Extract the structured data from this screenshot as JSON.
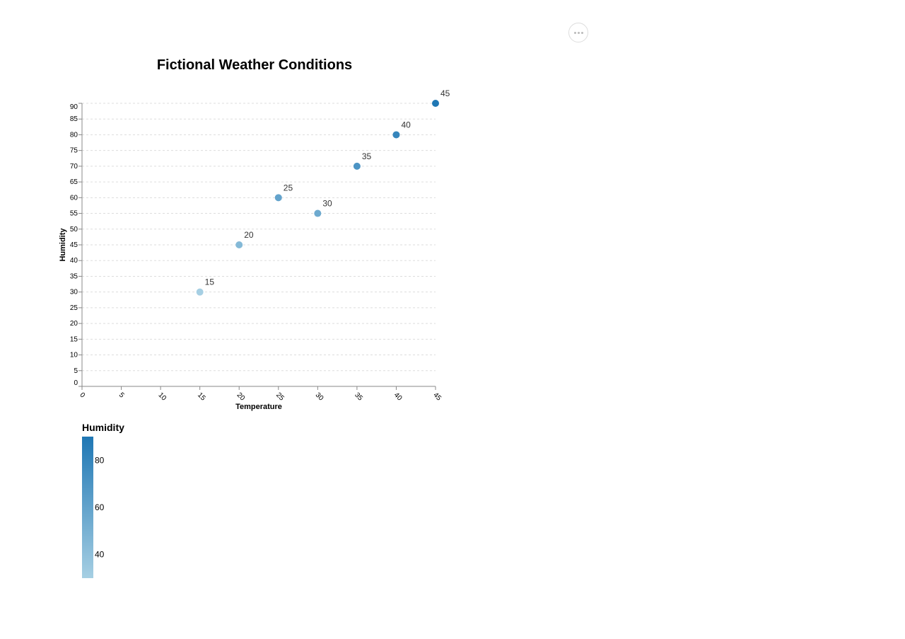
{
  "menu": {
    "icon": "more-horizontal-icon"
  },
  "chart_data": {
    "type": "scatter",
    "title": "Fictional Weather Conditions",
    "xlabel": "Temperature",
    "ylabel": "Humidity",
    "xlim": [
      0,
      45
    ],
    "ylim": [
      0,
      90
    ],
    "x_ticks": [
      "0",
      "5",
      "10",
      "15",
      "20",
      "25",
      "30",
      "35",
      "40",
      "45"
    ],
    "y_ticks": [
      "0",
      "5",
      "10",
      "15",
      "20",
      "25",
      "30",
      "35",
      "40",
      "45",
      "50",
      "55",
      "60",
      "65",
      "70",
      "75",
      "80",
      "85",
      "90"
    ],
    "grid": "horizontal dashed",
    "points": [
      {
        "x": 15,
        "y": 30,
        "label": "15"
      },
      {
        "x": 20,
        "y": 45,
        "label": "20"
      },
      {
        "x": 25,
        "y": 60,
        "label": "25"
      },
      {
        "x": 30,
        "y": 55,
        "label": "30"
      },
      {
        "x": 35,
        "y": 70,
        "label": "35"
      },
      {
        "x": 40,
        "y": 80,
        "label": "40"
      },
      {
        "x": 45,
        "y": 90,
        "label": "45"
      }
    ],
    "color_scale": {
      "field": "Humidity",
      "domain": [
        30,
        90
      ],
      "range": [
        "#a6cfe3",
        "#1f77b4"
      ]
    },
    "legend": {
      "title": "Humidity",
      "placement": "bottom-left",
      "labels": [
        {
          "value": 80,
          "text": "80"
        },
        {
          "value": 60,
          "text": "60"
        },
        {
          "value": 40,
          "text": "40"
        }
      ]
    }
  }
}
